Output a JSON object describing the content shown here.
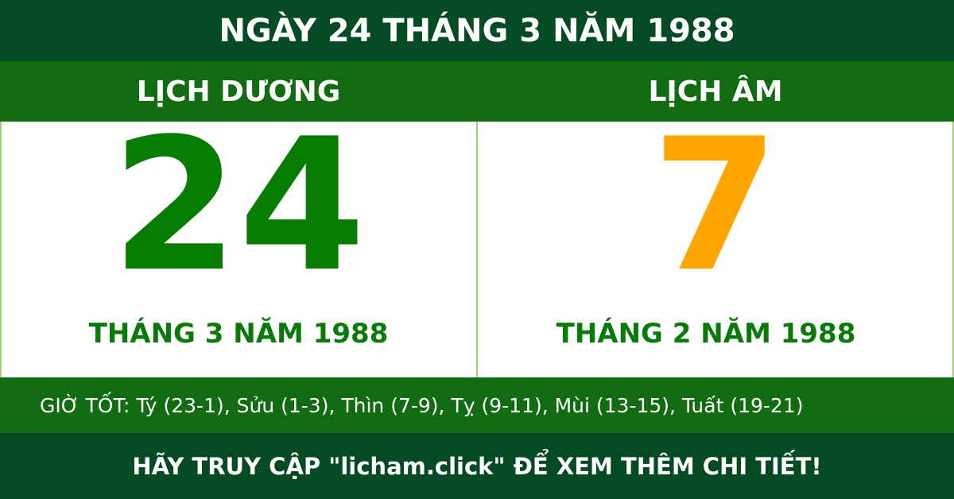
{
  "header": {
    "title": "NGÀY 24 THÁNG 3 NĂM 1988"
  },
  "solar": {
    "label": "LỊCH DƯƠNG",
    "day": "24",
    "month_year": "THÁNG 3 NĂM 1988"
  },
  "lunar": {
    "label": "LỊCH ÂM",
    "day": "7",
    "month_year": "THÁNG 2 NĂM 1988"
  },
  "good_hours": "GIỜ TỐT: Tý (23-1), Sửu (1-3), Thìn (7-9), Tỵ (9-11), Mùi (13-15), Tuất (19-21)",
  "footer": {
    "text": "HÃY TRUY CẬP \"licham.click\" ĐỂ XEM THÊM CHI TIẾT!"
  },
  "colors": {
    "dark_green": "#044a22",
    "green": "#116b10",
    "solar_day": "#067c00",
    "lunar_day": "#ffa500"
  }
}
